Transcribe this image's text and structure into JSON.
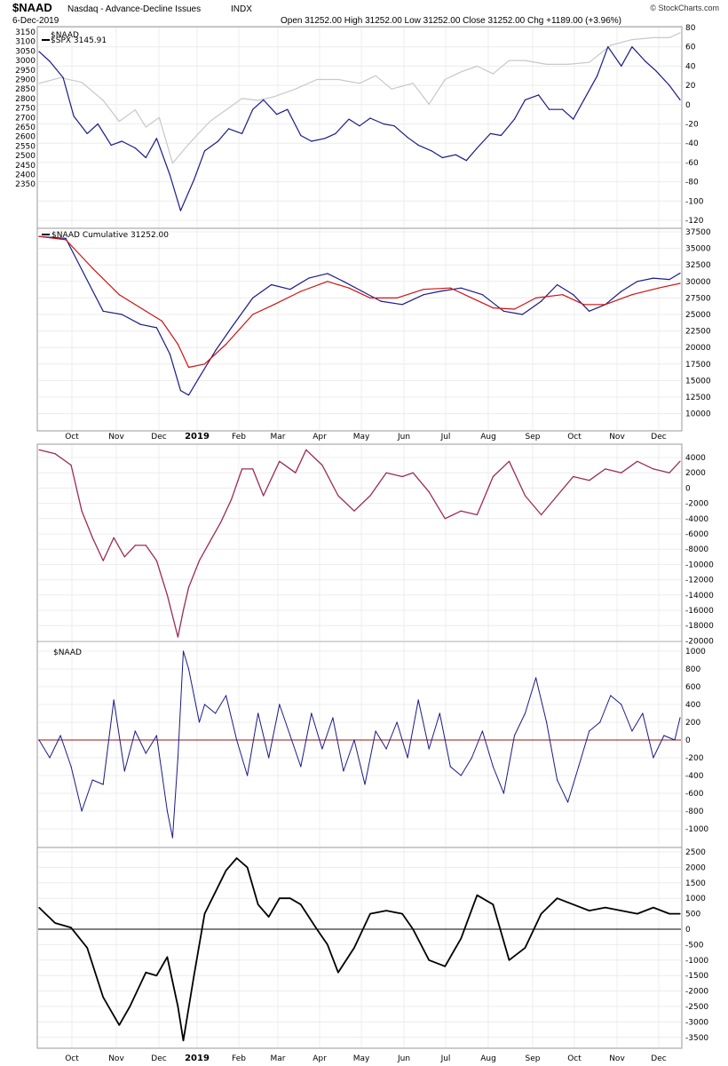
{
  "header": {
    "symbol": "$NAAD",
    "name": "Nasdaq - Advance-Decline Issues",
    "exchange": "INDX",
    "date": "6-Dec-2019",
    "ohlc": "Open 31252.00  High 31252.00  Low 31252.00  Close 31252.00  Chg +1189.00 (+3.96%)",
    "brand": "© StockCharts.com"
  },
  "chart_data": [
    {
      "type": "line",
      "panel": "price",
      "legend": [
        "$NAAD",
        "$SPX 3145.91"
      ],
      "left_axis_ticks": [
        "3150",
        "3100",
        "3050",
        "3000",
        "2950",
        "2900",
        "2850",
        "2800",
        "2750",
        "2700",
        "2650",
        "2600",
        "2550",
        "2500",
        "2450",
        "2400",
        "2350"
      ],
      "right_axis_ticks": [
        "80",
        "60",
        "40",
        "20",
        "0",
        "-20",
        "-40",
        "-60",
        "-80",
        "-100",
        "-120"
      ],
      "series": [
        {
          "name": "$NAAD",
          "color": "#1a1a8a",
          "axis": "right",
          "x": [
            0,
            4,
            9,
            13,
            18,
            22,
            27,
            31,
            36,
            40,
            44,
            49,
            53,
            58,
            62,
            67,
            71,
            76,
            80,
            84,
            89,
            93,
            98,
            102,
            107,
            111,
            116,
            120,
            124,
            129,
            133,
            138,
            142,
            147,
            151,
            156,
            160,
            164,
            169,
            173,
            178,
            182,
            187,
            191,
            196,
            200,
            204,
            209,
            213,
            218,
            222,
            227,
            231,
            236,
            240
          ],
          "values": [
            55,
            45,
            28,
            -12,
            -30,
            -20,
            -42,
            -38,
            -45,
            -55,
            -35,
            -73,
            -110,
            -78,
            -48,
            -38,
            -25,
            -30,
            -5,
            5,
            -10,
            -5,
            -32,
            -38,
            -35,
            -30,
            -15,
            -22,
            -14,
            -20,
            -22,
            -34,
            -42,
            -48,
            -55,
            -52,
            -58,
            -45,
            -30,
            -32,
            -15,
            5,
            10,
            -5,
            -5,
            -15,
            5,
            30,
            60,
            40,
            60,
            45,
            35,
            20,
            5
          ]
        },
        {
          "name": "$SPX",
          "color": "#c8c8c8",
          "axis": "left",
          "x": [
            0,
            8,
            16,
            24,
            30,
            36,
            40,
            45,
            50,
            56,
            60,
            64,
            70,
            76,
            82,
            88,
            96,
            104,
            112,
            120,
            126,
            132,
            140,
            146,
            152,
            158,
            164,
            170,
            176,
            182,
            190,
            198,
            206,
            214,
            222,
            230,
            236,
            240
          ],
          "values": [
            2880,
            2910,
            2885,
            2790,
            2680,
            2740,
            2650,
            2700,
            2460,
            2560,
            2620,
            2680,
            2740,
            2800,
            2790,
            2810,
            2850,
            2900,
            2900,
            2880,
            2920,
            2850,
            2880,
            2770,
            2900,
            2940,
            2970,
            2930,
            3000,
            3000,
            2980,
            2980,
            2990,
            3080,
            3110,
            3120,
            3120,
            3146
          ]
        }
      ]
    },
    {
      "type": "line",
      "panel": "cumulative",
      "legend": [
        "$NAAD Cumulative 31252.00"
      ],
      "axis_ticks": [
        "37500",
        "35000",
        "32500",
        "30000",
        "27500",
        "25000",
        "22500",
        "20000",
        "17500",
        "15000",
        "12500",
        "10000"
      ],
      "ylim": [
        8500,
        38500
      ],
      "series": [
        {
          "name": "$NAAD Cumulative",
          "color": "#1a1a8a",
          "x": [
            0,
            10,
            17,
            24,
            31,
            38,
            44,
            49,
            53,
            56,
            60,
            66,
            72,
            80,
            87,
            94,
            101,
            108,
            114,
            121,
            128,
            136,
            144,
            150,
            158,
            166,
            174,
            181,
            188,
            194,
            200,
            206,
            212,
            218,
            224,
            230,
            236,
            240
          ],
          "values": [
            36800,
            36500,
            31000,
            25500,
            25000,
            23500,
            23000,
            19000,
            13500,
            12800,
            15500,
            19500,
            23000,
            27500,
            29500,
            28800,
            30500,
            31200,
            30000,
            28500,
            27000,
            26500,
            28000,
            28500,
            29000,
            28000,
            25500,
            25000,
            27000,
            29500,
            28000,
            25500,
            26500,
            28500,
            30000,
            30500,
            30300,
            31252
          ]
        },
        {
          "name": "Moving average",
          "color": "#d01010",
          "x": [
            0,
            10,
            20,
            30,
            40,
            46,
            52,
            56,
            62,
            70,
            80,
            88,
            98,
            108,
            116,
            124,
            134,
            144,
            154,
            162,
            170,
            178,
            186,
            196,
            204,
            212,
            222,
            232,
            240
          ],
          "values": [
            36800,
            36300,
            32000,
            28000,
            25500,
            24000,
            20500,
            17000,
            17500,
            20500,
            25000,
            26500,
            28500,
            30000,
            29000,
            27500,
            27500,
            28800,
            29000,
            27500,
            26000,
            25800,
            27500,
            28000,
            26500,
            26500,
            28000,
            29000,
            29700
          ]
        }
      ]
    },
    {
      "type": "line",
      "panel": "oscillator",
      "axis_ticks": [
        "4000",
        "2000",
        "0",
        "-2000",
        "-4000",
        "-6000",
        "-8000",
        "-10000",
        "-12000",
        "-14000",
        "-16000",
        "-18000",
        "-20000"
      ],
      "ylim": [
        -20500,
        5500
      ],
      "series": [
        {
          "name": "Oscillator",
          "color": "#9c2a57",
          "x": [
            0,
            6,
            12,
            16,
            20,
            24,
            28,
            32,
            36,
            40,
            44,
            48,
            52,
            54,
            56,
            60,
            64,
            68,
            72,
            76,
            80,
            84,
            90,
            96,
            100,
            106,
            112,
            118,
            124,
            130,
            136,
            140,
            146,
            152,
            158,
            164,
            170,
            176,
            182,
            188,
            194,
            200,
            206,
            212,
            218,
            224,
            230,
            236,
            240
          ],
          "values": [
            5000,
            4500,
            3000,
            -3000,
            -6500,
            -9500,
            -6500,
            -9000,
            -7500,
            -7500,
            -9500,
            -14000,
            -19500,
            -16000,
            -13000,
            -9500,
            -7000,
            -4500,
            -1500,
            2500,
            2500,
            -1000,
            3500,
            2000,
            5000,
            3000,
            -1000,
            -3000,
            -1000,
            2000,
            1500,
            2000,
            -500,
            -4000,
            -3000,
            -3500,
            1500,
            3500,
            -1000,
            -3500,
            -1000,
            1500,
            1000,
            2500,
            2000,
            3500,
            2500,
            2000,
            3500
          ]
        }
      ]
    },
    {
      "type": "line",
      "panel": "daily",
      "legend": [
        "$NAAD"
      ],
      "axis_ticks": [
        "1000",
        "800",
        "600",
        "400",
        "200",
        "0",
        "-200",
        "-400",
        "-600",
        "-800",
        "-1000"
      ],
      "ylim": [
        -1100,
        1060
      ],
      "reference_line": {
        "value": 0,
        "color": "#a01010"
      },
      "series": [
        {
          "name": "$NAAD",
          "color": "#1a1a8a",
          "x": [
            0,
            4,
            8,
            12,
            16,
            20,
            24,
            28,
            32,
            36,
            40,
            44,
            48,
            50,
            52,
            54,
            56,
            58,
            60,
            62,
            66,
            70,
            74,
            78,
            82,
            86,
            90,
            94,
            98,
            102,
            106,
            110,
            114,
            118,
            122,
            126,
            130,
            134,
            138,
            142,
            146,
            150,
            154,
            158,
            162,
            166,
            170,
            174,
            178,
            182,
            186,
            190,
            194,
            198,
            202,
            206,
            210,
            214,
            218,
            222,
            226,
            230,
            234,
            238,
            240
          ],
          "values": [
            0,
            -200,
            50,
            -300,
            -800,
            -450,
            -500,
            450,
            -350,
            100,
            -150,
            50,
            -800,
            -1100,
            -200,
            1000,
            800,
            500,
            200,
            400,
            300,
            500,
            0,
            -400,
            300,
            -200,
            400,
            50,
            -300,
            300,
            -100,
            250,
            -350,
            0,
            -500,
            100,
            -100,
            200,
            -200,
            450,
            -100,
            300,
            -300,
            -400,
            -200,
            100,
            -300,
            -600,
            50,
            300,
            700,
            200,
            -450,
            -700,
            -300,
            100,
            200,
            500,
            400,
            100,
            300,
            -200,
            50,
            0,
            250
          ]
        }
      ]
    },
    {
      "type": "line",
      "panel": "smoothed",
      "axis_ticks": [
        "2500",
        "2000",
        "1500",
        "1000",
        "500",
        "0",
        "-500",
        "-1000",
        "-1500",
        "-2000",
        "-2500",
        "-3000",
        "-3500"
      ],
      "ylim": [
        -3700,
        2750
      ],
      "reference_line": {
        "value": 0,
        "color": "#000000"
      },
      "series": [
        {
          "name": "Smoothed",
          "color": "#000000",
          "x": [
            0,
            6,
            12,
            18,
            24,
            30,
            34,
            40,
            44,
            48,
            52,
            54,
            58,
            62,
            66,
            70,
            74,
            78,
            82,
            86,
            90,
            94,
            98,
            104,
            108,
            112,
            118,
            124,
            130,
            136,
            140,
            146,
            152,
            158,
            164,
            170,
            176,
            182,
            188,
            194,
            200,
            206,
            212,
            218,
            224,
            230,
            236,
            240
          ],
          "values": [
            700,
            200,
            50,
            -600,
            -2200,
            -3100,
            -2500,
            -1400,
            -1500,
            -900,
            -2500,
            -3600,
            -1500,
            500,
            1200,
            1900,
            2300,
            2000,
            800,
            400,
            1000,
            1000,
            800,
            0,
            -500,
            -1400,
            -600,
            500,
            600,
            500,
            0,
            -1000,
            -1200,
            -300,
            1100,
            800,
            -1000,
            -600,
            500,
            1000,
            800,
            600,
            700,
            600,
            500,
            700,
            500,
            500
          ]
        }
      ]
    }
  ],
  "x_axis_labels": [
    "Oct",
    "Nov",
    "Dec",
    "2019",
    "Feb",
    "Mar",
    "Apr",
    "May",
    "Jun",
    "Jul",
    "Aug",
    "Sep",
    "Oct",
    "Nov",
    "Dec"
  ]
}
